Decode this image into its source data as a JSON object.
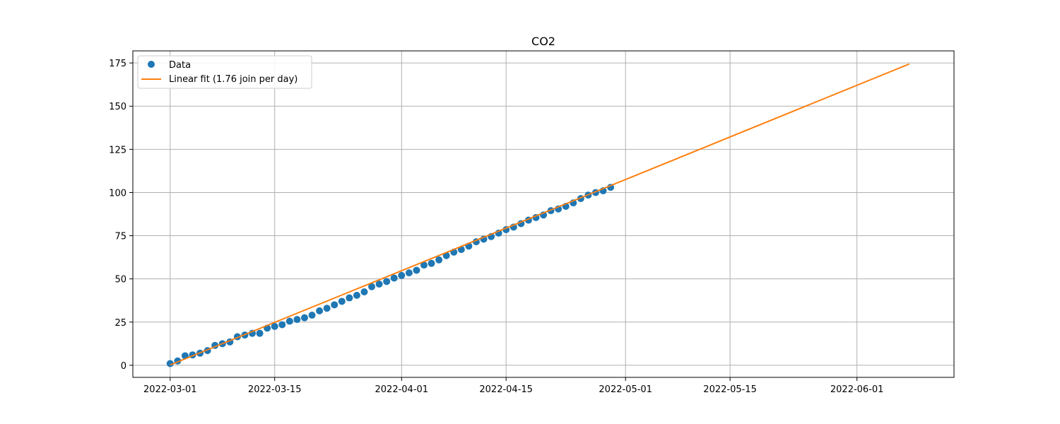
{
  "chart_data": {
    "type": "scatter",
    "title": "CO2",
    "xlabel": "",
    "ylabel": "",
    "x_start": "2022-03-01",
    "x_end": "2022-04-29",
    "xlim": [
      "2022-02-24",
      "2022-06-14"
    ],
    "ylim": [
      -7,
      182
    ],
    "grid": true,
    "legend_position": "top-left",
    "x_ticks": [
      "2022-03-01",
      "2022-03-15",
      "2022-04-01",
      "2022-04-15",
      "2022-05-01",
      "2022-05-15",
      "2022-06-01"
    ],
    "y_ticks": [
      0,
      25,
      50,
      75,
      100,
      125,
      150,
      175
    ],
    "series": [
      {
        "name": "Data",
        "kind": "scatter",
        "color": "#1f77b4",
        "values": [
          1,
          2.5,
          5.5,
          6,
          7,
          8.5,
          11.5,
          12.5,
          13.5,
          16.5,
          17.5,
          18.5,
          18.5,
          21.5,
          22.5,
          23.5,
          25.5,
          26.5,
          27.5,
          29,
          31.5,
          33,
          35,
          37,
          39,
          40.5,
          42.5,
          45.5,
          47,
          48.5,
          50.5,
          52,
          53.5,
          55,
          58,
          59,
          61,
          63.5,
          65.5,
          67,
          69,
          71.5,
          73,
          74.5,
          76.5,
          78.5,
          80,
          82,
          84,
          85.5,
          87,
          89.5,
          90.5,
          92,
          94,
          96.5,
          98.5,
          100,
          101,
          103
        ]
      },
      {
        "name": "Linear fit (1.76 join per day)",
        "kind": "line",
        "color": "#ff7f0e",
        "x": [
          "2022-03-01",
          "2022-06-08"
        ],
        "values": [
          0.2,
          174.4
        ]
      }
    ]
  }
}
